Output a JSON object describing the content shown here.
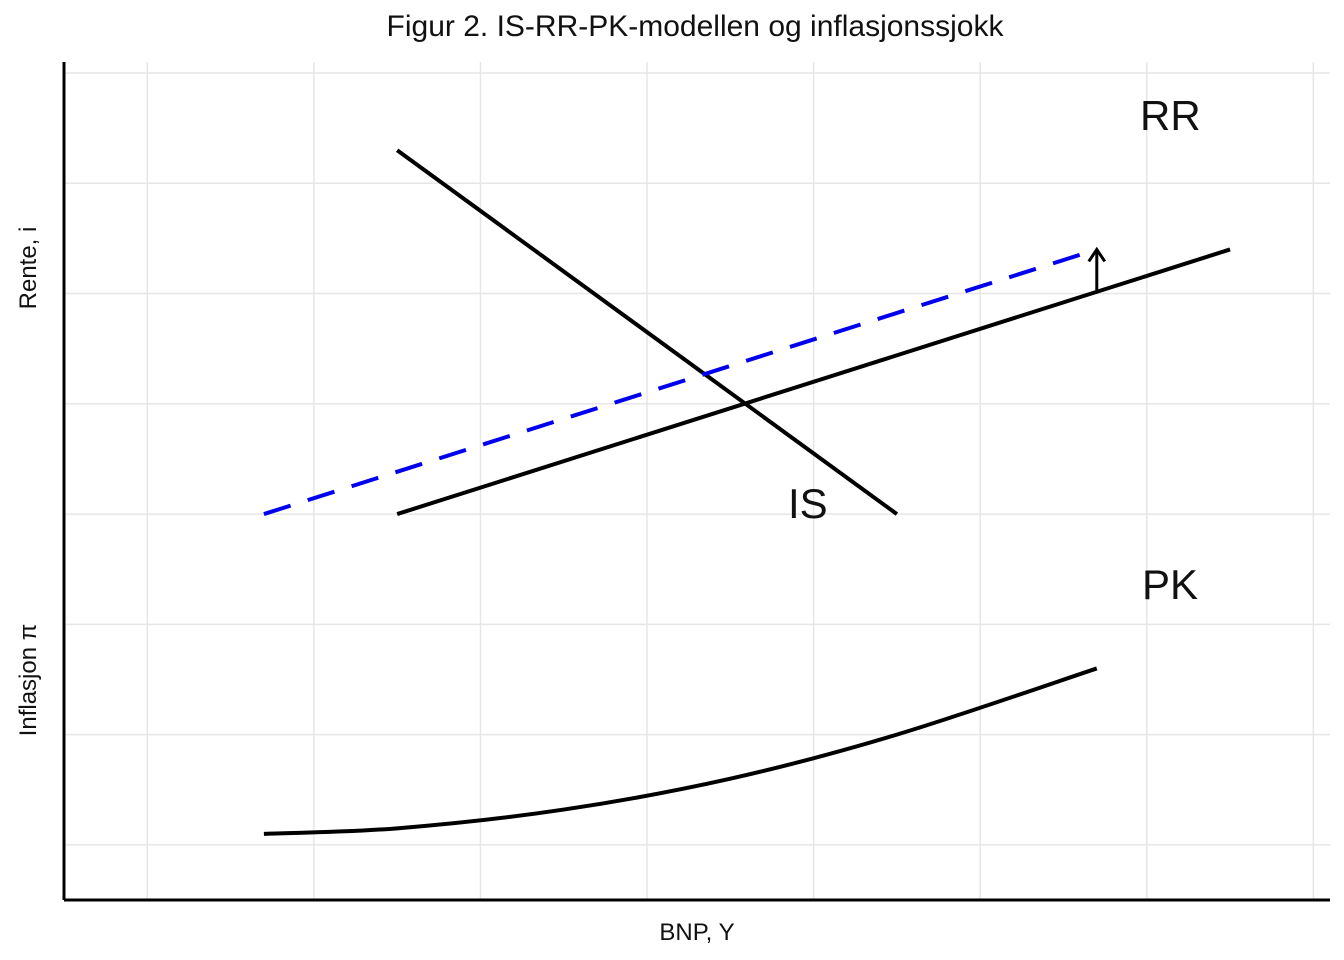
{
  "chart_data": {
    "type": "line",
    "title": "Figur 2. IS-RR-PK-modellen og inflasjonssjokk",
    "xlabel": "BNP, Y",
    "ylabel_upper": "Rente, i",
    "ylabel_lower": "Inflasjon π",
    "xlim": [
      0,
      7.6
    ],
    "ylim": [
      0,
      7.6
    ],
    "grid": true,
    "series": [
      {
        "name": "IS",
        "color": "#000000",
        "dash": false,
        "x": [
          2.0,
          5.0
        ],
        "y": [
          6.8,
          3.5
        ]
      },
      {
        "name": "RR",
        "color": "#000000",
        "dash": false,
        "x": [
          2.0,
          7.0
        ],
        "y": [
          3.5,
          5.9
        ]
      },
      {
        "name": "",
        "color": "#0000ee",
        "dash": true,
        "x": [
          1.2,
          6.2
        ],
        "y": [
          3.5,
          5.9
        ]
      },
      {
        "name": "PK",
        "color": "#000000",
        "dash": false,
        "x": [
          1.2,
          2.0,
          3.0,
          4.0,
          5.0,
          6.2
        ],
        "y": [
          0.6,
          0.65,
          0.82,
          1.1,
          1.5,
          2.1
        ]
      }
    ],
    "annotations": [
      {
        "type": "arrow",
        "from": [
          6.2,
          5.5
        ],
        "to": [
          6.2,
          5.9
        ],
        "color": "#000000"
      }
    ]
  }
}
